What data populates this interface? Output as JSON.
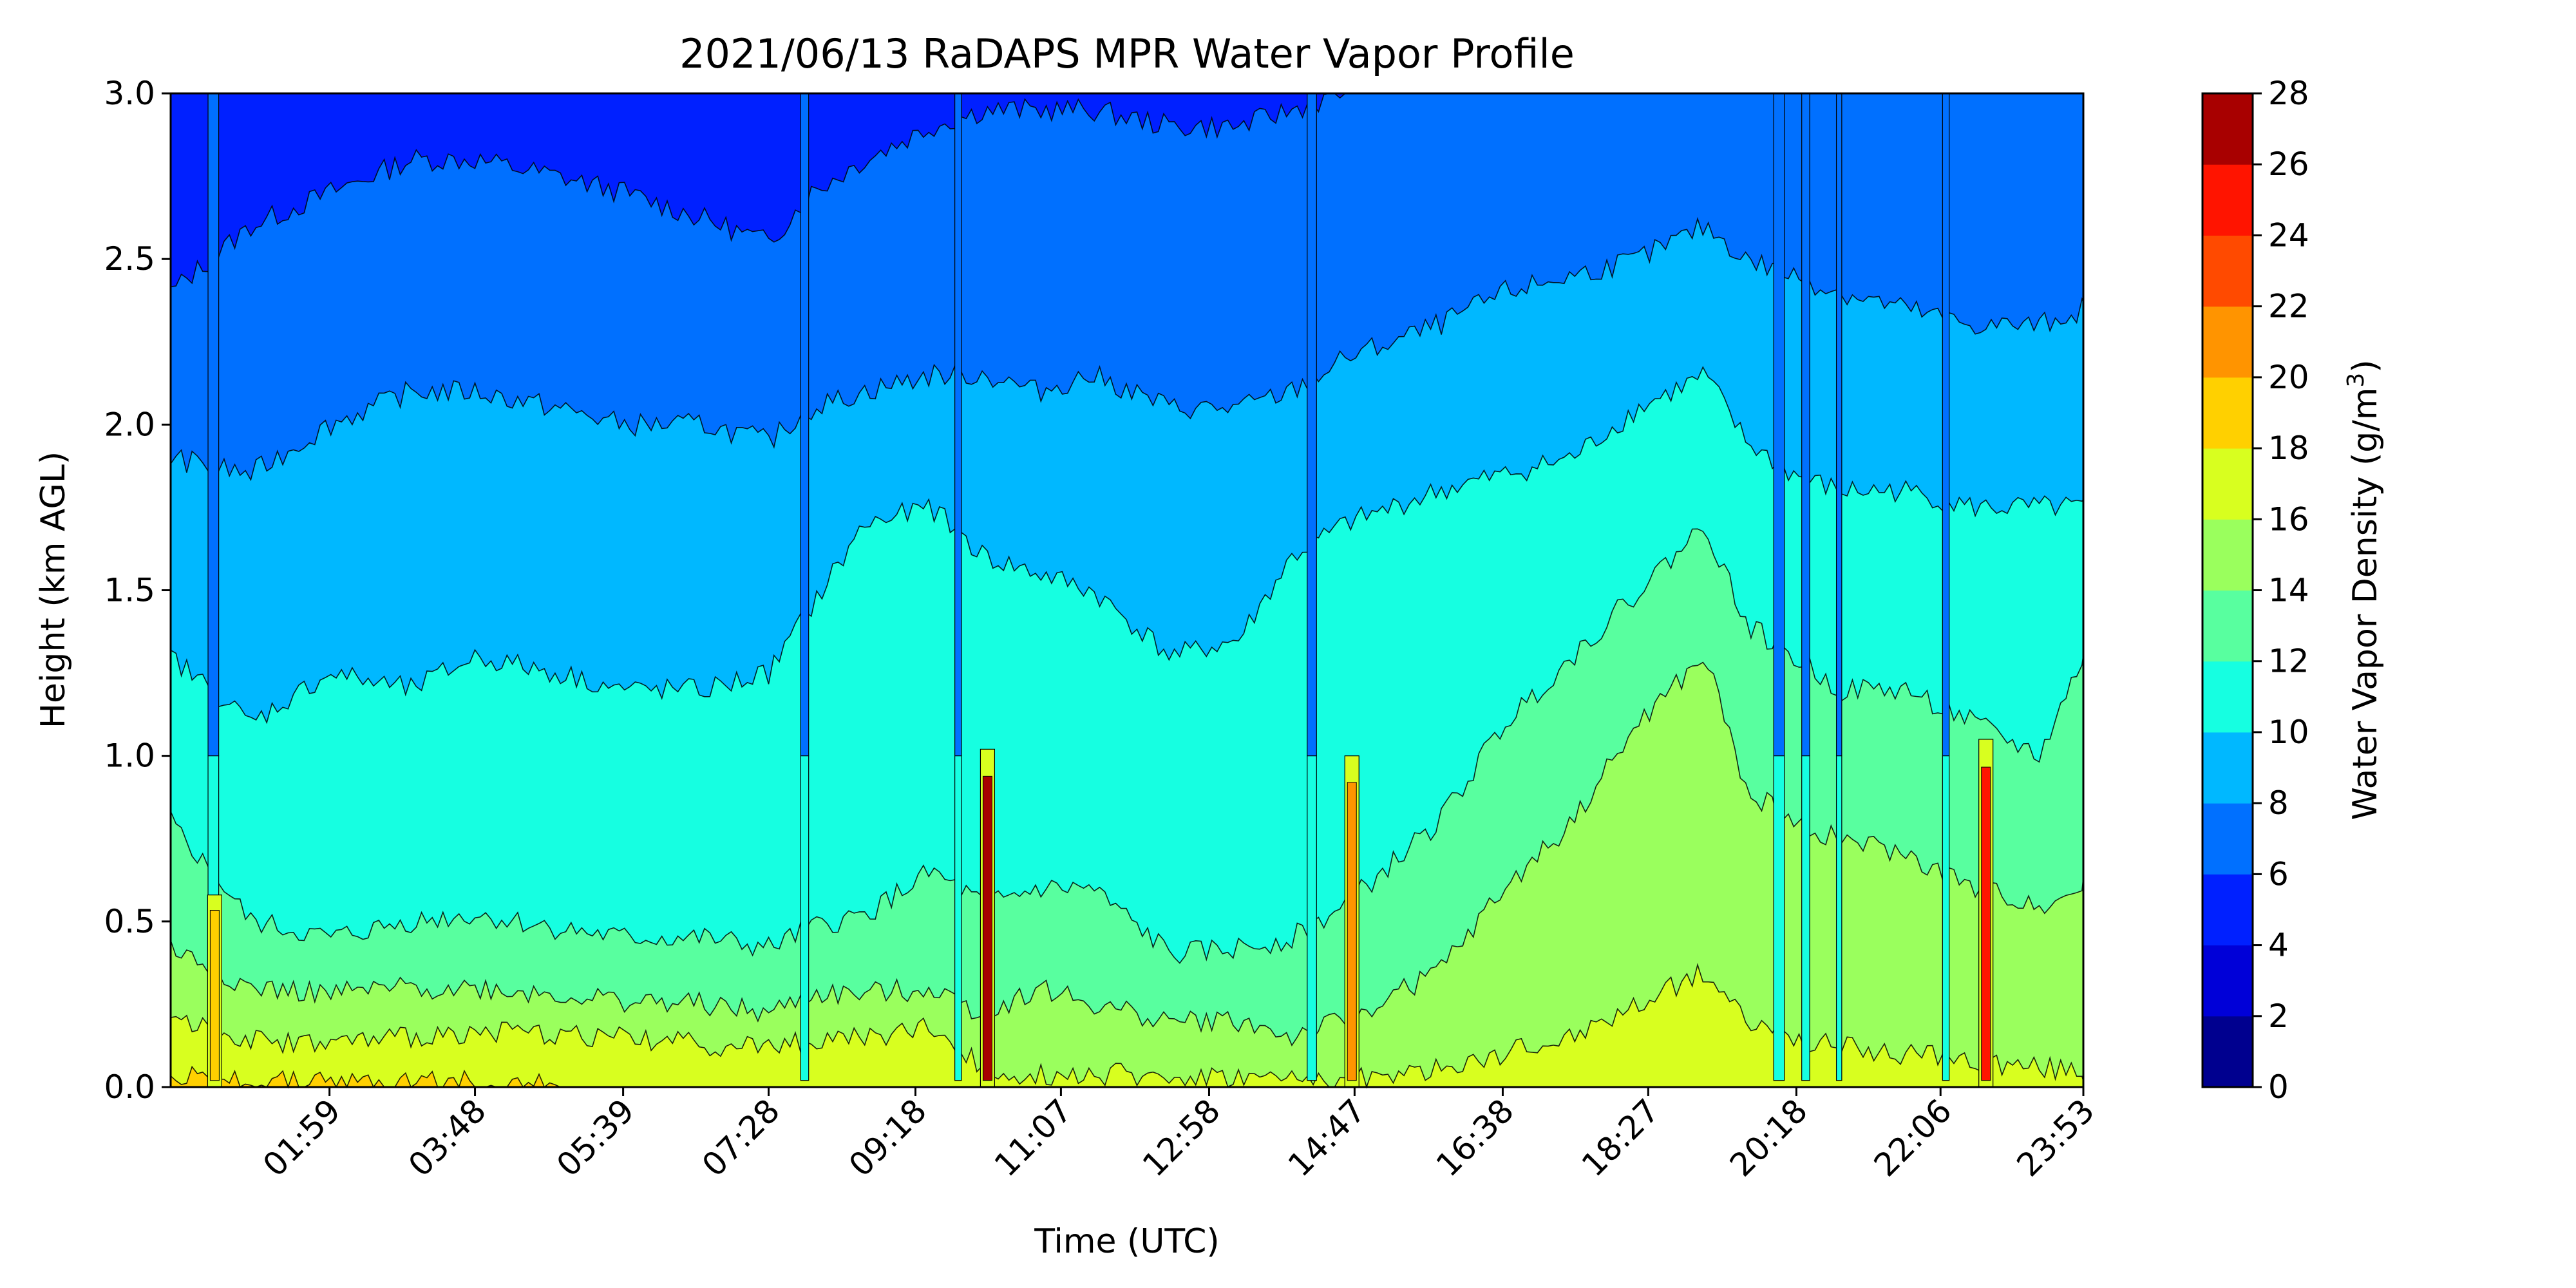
{
  "chart_data": {
    "type": "heatmap",
    "subtype": "filled-contour",
    "title": "2021/06/13 RaDAPS MPR Water Vapor Profile",
    "xlabel": "Time (UTC)",
    "ylabel": "Height (km AGL)",
    "xlim_minutes": [
      0,
      1433
    ],
    "x_ticks": [
      "01:59",
      "03:48",
      "05:39",
      "07:28",
      "09:18",
      "11:07",
      "12:58",
      "14:47",
      "16:38",
      "18:27",
      "20:18",
      "22:06",
      "23:53"
    ],
    "y_ticks": [
      "0.0",
      "0.5",
      "1.0",
      "1.5",
      "2.0",
      "2.5",
      "3.0"
    ],
    "ylim": [
      0,
      3.0
    ],
    "colorbar": {
      "label": "Water Vapor Density (g/m",
      "label_superscript": "3",
      "label_suffix": ")",
      "levels": [
        0,
        2,
        4,
        6,
        8,
        10,
        12,
        14,
        16,
        18,
        20,
        22,
        24,
        26,
        28
      ],
      "tick_labels": [
        "0",
        "2",
        "4",
        "6",
        "8",
        "10",
        "12",
        "14",
        "16",
        "18",
        "20",
        "22",
        "24",
        "26",
        "28"
      ],
      "colors": [
        "#00008f",
        "#0000d8",
        "#0020ff",
        "#0070ff",
        "#00b8ff",
        "#16ffe1",
        "#58ff9f",
        "#9aff5d",
        "#d8ff1f",
        "#ffd000",
        "#ff9400",
        "#ff4a00",
        "#ff1400",
        "#a80000"
      ]
    },
    "level_boundary_heights_km": {
      "description": "approximate height (km AGL) of each contour level over time",
      "time_minutes": [
        0,
        60,
        119,
        180,
        228,
        290,
        340,
        400,
        448,
        480,
        520,
        570,
        610,
        650,
        690,
        750,
        800,
        840,
        880,
        950,
        1000,
        1050,
        1100,
        1150,
        1180,
        1215,
        1250,
        1300,
        1350,
        1400,
        1433
      ],
      "levels": [
        {
          "level": 18,
          "heights": [
            0.03,
            0.02,
            0.01,
            0.02,
            0.02,
            0.0,
            0.0,
            0.0,
            0.0,
            0.0,
            0.0,
            0.0,
            0.0,
            0.0,
            0.0,
            0.0,
            0.0,
            0.0,
            0.0,
            0.0,
            0.0,
            0.0,
            0.0,
            0.0,
            0.0,
            0.0,
            0.0,
            0.0,
            0.0,
            0.0,
            0.0
          ]
        },
        {
          "level": 16,
          "heights": [
            0.22,
            0.14,
            0.13,
            0.15,
            0.17,
            0.16,
            0.15,
            0.13,
            0.12,
            0.14,
            0.15,
            0.18,
            0.05,
            0.04,
            0.04,
            0.03,
            0.03,
            0.02,
            0.02,
            0.05,
            0.1,
            0.15,
            0.25,
            0.35,
            0.2,
            0.15,
            0.12,
            0.1,
            0.08,
            0.06,
            0.05
          ]
        },
        {
          "level": 14,
          "heights": [
            0.42,
            0.3,
            0.28,
            0.3,
            0.3,
            0.28,
            0.26,
            0.25,
            0.22,
            0.28,
            0.28,
            0.3,
            0.22,
            0.3,
            0.25,
            0.2,
            0.2,
            0.15,
            0.2,
            0.35,
            0.6,
            0.8,
            1.1,
            1.3,
            0.9,
            0.8,
            0.75,
            0.7,
            0.6,
            0.55,
            0.6
          ]
        },
        {
          "level": 12,
          "heights": [
            0.8,
            0.5,
            0.45,
            0.5,
            0.52,
            0.48,
            0.45,
            0.45,
            0.42,
            0.48,
            0.52,
            0.65,
            0.55,
            0.6,
            0.6,
            0.4,
            0.42,
            0.45,
            0.55,
            0.8,
            1.1,
            1.3,
            1.5,
            1.7,
            1.4,
            1.3,
            1.2,
            1.2,
            1.1,
            1.0,
            1.3
          ]
        },
        {
          "level": 10,
          "heights": [
            1.3,
            1.1,
            1.25,
            1.2,
            1.3,
            1.25,
            1.2,
            1.2,
            1.25,
            1.45,
            1.7,
            1.75,
            1.6,
            1.55,
            1.5,
            1.3,
            1.35,
            1.6,
            1.7,
            1.8,
            1.85,
            1.9,
            2.05,
            2.15,
            1.95,
            1.85,
            1.8,
            1.8,
            1.75,
            1.75,
            1.75
          ]
        },
        {
          "level": 8,
          "heights": [
            1.9,
            1.85,
            2.0,
            2.1,
            2.1,
            2.05,
            2.0,
            2.0,
            1.95,
            2.05,
            2.1,
            2.15,
            2.15,
            2.1,
            2.15,
            2.05,
            2.05,
            2.1,
            2.2,
            2.3,
            2.4,
            2.45,
            2.5,
            2.6,
            2.5,
            2.45,
            2.4,
            2.35,
            2.3,
            2.3,
            2.35
          ]
        },
        {
          "level": 6,
          "heights": [
            2.4,
            2.6,
            2.7,
            2.8,
            2.8,
            2.75,
            2.7,
            2.62,
            2.55,
            2.7,
            2.8,
            2.9,
            2.95,
            2.95,
            2.95,
            2.9,
            2.9,
            2.95,
            3.0,
            3.0,
            3.0,
            3.0,
            3.0,
            3.0,
            3.0,
            3.0,
            3.0,
            3.0,
            3.0,
            3.0,
            3.0
          ]
        }
      ]
    },
    "vertical_spikes": [
      {
        "time_minutes": 33,
        "peak_value": 18,
        "top_km": 0.58
      },
      {
        "time_minutes": 612,
        "peak_value": 26,
        "top_km": 1.02
      },
      {
        "time_minutes": 885,
        "peak_value": 20,
        "top_km": 1.0
      },
      {
        "time_minutes": 1360,
        "peak_value": 24,
        "top_km": 1.05
      }
    ],
    "dry_columns": [
      {
        "time_minutes": 32,
        "width_minutes": 8
      },
      {
        "time_minutes": 475,
        "width_minutes": 6
      },
      {
        "time_minutes": 590,
        "width_minutes": 5
      },
      {
        "time_minutes": 855,
        "width_minutes": 7
      },
      {
        "time_minutes": 1205,
        "width_minutes": 8
      },
      {
        "time_minutes": 1225,
        "width_minutes": 6
      },
      {
        "time_minutes": 1250,
        "width_minutes": 4
      },
      {
        "time_minutes": 1330,
        "width_minutes": 5
      }
    ],
    "grid": false
  }
}
